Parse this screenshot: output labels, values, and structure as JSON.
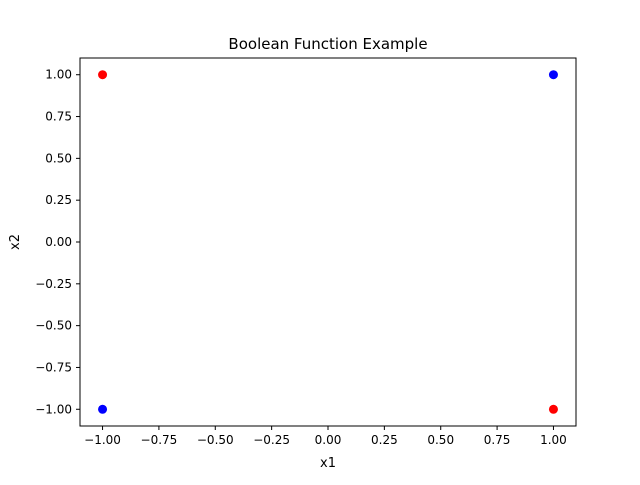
{
  "chart_data": {
    "type": "scatter",
    "title": "Boolean Function Example",
    "xlabel": "x1",
    "ylabel": "x2",
    "xlim": [
      -1.1,
      1.1
    ],
    "ylim": [
      -1.1,
      1.1
    ],
    "xticks": [
      -1.0,
      -0.75,
      -0.5,
      -0.25,
      0.0,
      0.25,
      0.5,
      0.75,
      1.0
    ],
    "xtick_labels": [
      "−1.00",
      "−0.75",
      "−0.50",
      "−0.25",
      "0.00",
      "0.25",
      "0.50",
      "0.75",
      "1.00"
    ],
    "yticks": [
      -1.0,
      -0.75,
      -0.5,
      -0.25,
      0.0,
      0.25,
      0.5,
      0.75,
      1.0
    ],
    "ytick_labels": [
      "−1.00",
      "−0.75",
      "−0.50",
      "−0.25",
      "0.00",
      "0.25",
      "0.50",
      "0.75",
      "1.00"
    ],
    "grid": false,
    "points": [
      {
        "x": -1,
        "y": 1,
        "color": "#ff0000"
      },
      {
        "x": 1,
        "y": 1,
        "color": "#0000ff"
      },
      {
        "x": -1,
        "y": -1,
        "color": "#0000ff"
      },
      {
        "x": 1,
        "y": -1,
        "color": "#ff0000"
      }
    ]
  }
}
